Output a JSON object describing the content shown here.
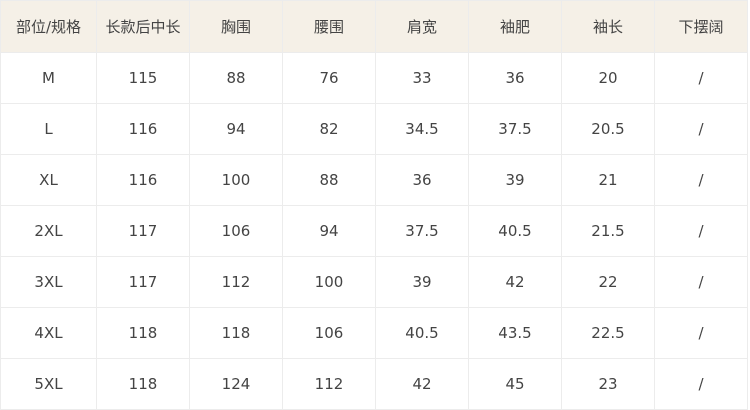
{
  "headers": [
    "部位/规格",
    "长款后中长",
    "胸围",
    "腰围",
    "肩宽",
    "袖肥",
    "袖长",
    "下摆阔"
  ],
  "rows": [
    [
      "M",
      "115",
      "88",
      "76",
      "33",
      "36",
      "20",
      "/"
    ],
    [
      "L",
      "116",
      "94",
      "82",
      "34.5",
      "37.5",
      "20.5",
      "/"
    ],
    [
      "XL",
      "116",
      "100",
      "88",
      "36",
      "39",
      "21",
      "/"
    ],
    [
      "2XL",
      "117",
      "106",
      "94",
      "37.5",
      "40.5",
      "21.5",
      "/"
    ],
    [
      "3XL",
      "117",
      "112",
      "100",
      "39",
      "42",
      "22",
      "/"
    ],
    [
      "4XL",
      "118",
      "118",
      "106",
      "40.5",
      "43.5",
      "22.5",
      "/"
    ],
    [
      "5XL",
      "118",
      "124",
      "112",
      "42",
      "45",
      "23",
      "/"
    ]
  ],
  "colors": {
    "header_bg": "#f5f0e7",
    "border": "#ececec",
    "text": "#444444"
  }
}
